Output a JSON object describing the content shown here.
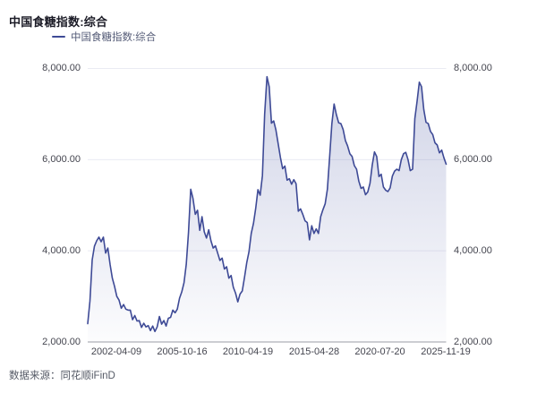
{
  "title": "中国食糖指数:综合",
  "legend": {
    "label": "中国食糖指数:综合"
  },
  "footer": {
    "source_text": "数据来源：同花顺iFinD"
  },
  "colors": {
    "line": "#3e4a96",
    "area_top": "rgba(99,110,175,0.30)",
    "area_bottom": "rgba(99,110,175,0.02)",
    "grid": "#eaebf3",
    "axis": "#9b9ca7",
    "title_text": "#1b1b26",
    "tick_text": "#44454f"
  },
  "chart_data": {
    "type": "area",
    "title": "中国食糖指数:综合",
    "legend": [
      "中国食糖指数:综合"
    ],
    "legend_position": "top-left",
    "grid": true,
    "ylim": [
      2000,
      8000
    ],
    "y_ticks": [
      2000,
      4000,
      6000,
      8000
    ],
    "y_tick_labels": [
      "2,000.00",
      "4,000.00",
      "6,000.00",
      "8,000.00"
    ],
    "x_tick_labels": [
      "2002-04-09",
      "2005-10-16",
      "2010-04-19",
      "2015-04-28",
      "2020-07-20",
      "2025-11-19"
    ],
    "x_range": [
      "2002-04-09",
      "2025-11-19"
    ],
    "series": [
      {
        "name": "中国食糖指数:综合",
        "values": [
          2400,
          2900,
          3800,
          4100,
          4220,
          4300,
          4200,
          4300,
          3950,
          4060,
          3700,
          3400,
          3220,
          3000,
          2920,
          2740,
          2820,
          2720,
          2700,
          2700,
          2490,
          2580,
          2460,
          2470,
          2320,
          2410,
          2330,
          2360,
          2250,
          2350,
          2230,
          2330,
          2560,
          2390,
          2470,
          2350,
          2520,
          2540,
          2700,
          2640,
          2720,
          2960,
          3100,
          3300,
          3700,
          4400,
          5350,
          5150,
          4800,
          4890,
          4450,
          4750,
          4420,
          4280,
          4460,
          4220,
          4060,
          4110,
          3950,
          3790,
          3840,
          3600,
          3650,
          3400,
          3460,
          3200,
          3070,
          2880,
          3050,
          3120,
          3420,
          3740,
          3980,
          4380,
          4600,
          4930,
          5340,
          5220,
          5650,
          7000,
          7820,
          7600,
          6800,
          6850,
          6650,
          6350,
          6050,
          5800,
          5860,
          5550,
          5580,
          5460,
          5560,
          5470,
          4870,
          4920,
          4800,
          4660,
          4620,
          4240,
          4550,
          4380,
          4480,
          4380,
          4750,
          4900,
          5030,
          5350,
          6060,
          6790,
          7220,
          6990,
          6810,
          6790,
          6660,
          6420,
          6300,
          6130,
          6070,
          5870,
          5790,
          5530,
          5370,
          5400,
          5230,
          5290,
          5480,
          5880,
          6170,
          6070,
          5630,
          5680,
          5400,
          5330,
          5300,
          5380,
          5640,
          5750,
          5790,
          5760,
          6000,
          6130,
          6160,
          6000,
          5760,
          5790,
          6900,
          7280,
          7700,
          7600,
          7100,
          6820,
          6790,
          6620,
          6550,
          6370,
          6320,
          6150,
          6210,
          6040,
          5900
        ]
      }
    ]
  }
}
